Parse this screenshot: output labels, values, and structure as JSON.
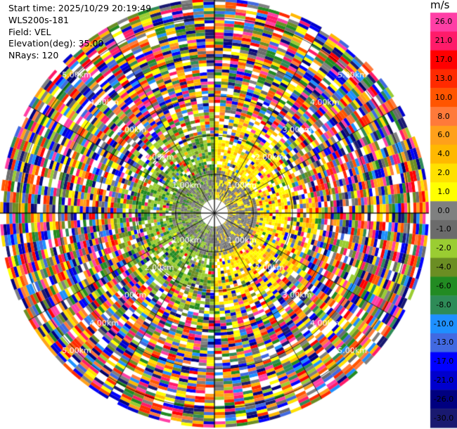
{
  "info": {
    "start_time": "Start time: 2025/10/29 20:19:49",
    "site": "WLS200s-181",
    "field": "Field: VEL",
    "elevation": "Elevation(deg): 35.00",
    "nrays": "NRays: 120"
  },
  "colorbar": {
    "unit": "m/s",
    "labels": [
      "26.0",
      "21.0",
      "17.0",
      "13.0",
      "10.0",
      "8.0",
      "6.0",
      "4.0",
      "2.0",
      "1.0",
      "0.0",
      "-1.0",
      "-2.0",
      "-4.0",
      "-6.0",
      "-8.0",
      "-10.0",
      "-13.0",
      "-17.0",
      "-21.0",
      "-26.0",
      "-30.0"
    ],
    "colors": [
      "#ff3fa6",
      "#ff1b6a",
      "#ff0000",
      "#ff2a00",
      "#ff5500",
      "#ff7a3a",
      "#ffa01a",
      "#ffb800",
      "#ffe000",
      "#ffff00",
      "#7f8080",
      "#6b6b6b",
      "#9acd32",
      "#6b8e23",
      "#228b22",
      "#2e8b57",
      "#1e90ff",
      "#4169e1",
      "#0000ff",
      "#0000cd",
      "#000080",
      "#191970"
    ]
  },
  "chart_data": {
    "type": "heatmap",
    "subtype": "radar-ppi",
    "field": "VEL",
    "unit": "m/s",
    "nrays": 120,
    "elevation_deg": 35.0,
    "range_ring_labels": [
      "1.00km",
      "2.00km",
      "3.00km",
      "4.00km",
      "5.00km"
    ],
    "range_ring_km": [
      1,
      2,
      3,
      4,
      5
    ],
    "max_range_km": 5.5,
    "color_scale_min": -30.0,
    "color_scale_max": 26.0,
    "near_field_pattern": "yellow 0 to 4 m/s toward north-east, green -1 to -4 m/s toward south-west within about 1.6 km; random noise beyond"
  }
}
